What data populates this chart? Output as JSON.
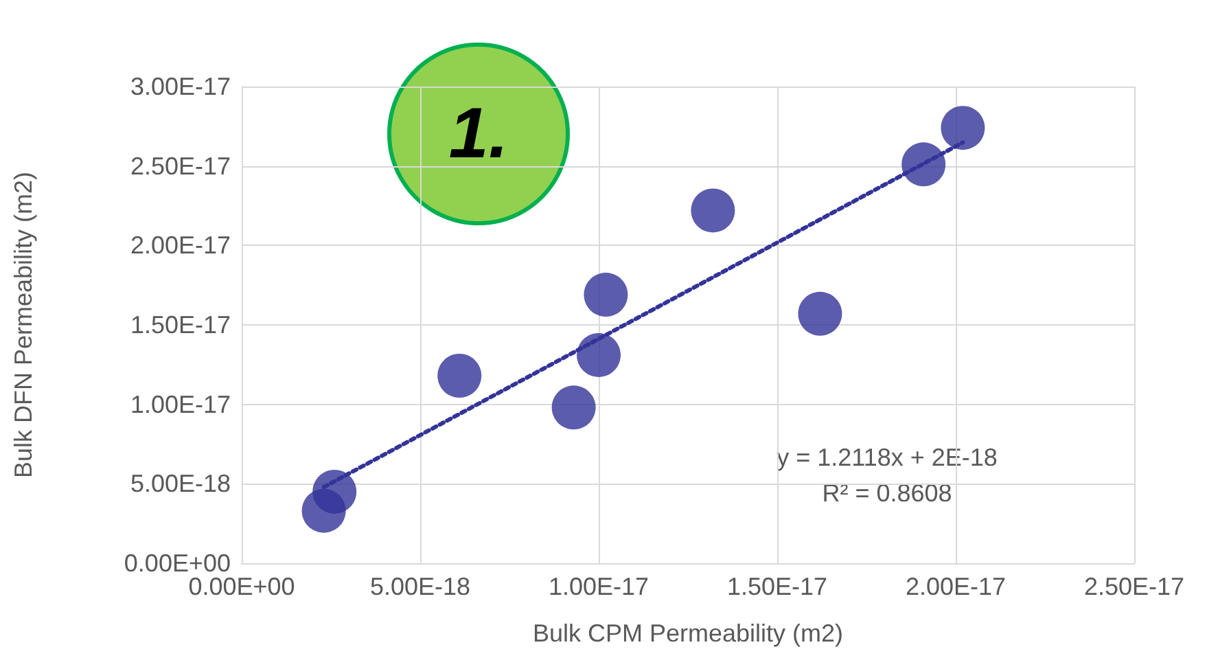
{
  "chart_data": {
    "type": "scatter",
    "xlabel": "Bulk CPM Permeability (m2)",
    "ylabel": "Bulk DFN Permeability (m2)",
    "annotations": [
      "1.",
      "y = 1.2118x + 2E-18",
      "R² = 0.8608"
    ],
    "series": [
      {
        "color": "#333399",
        "marker": "circle",
        "x": [
          2.3e-18,
          2.6e-18,
          6.1e-18,
          9.3e-18,
          1e-17,
          1.02e-17,
          1.32e-17,
          1.62e-17,
          1.91e-17,
          2.02e-17
        ],
        "values": [
          3.3e-18,
          4.5e-18,
          1.18e-17,
          9.8e-18,
          1.31e-17,
          1.69e-17,
          2.22e-17,
          1.57e-17,
          2.51e-17,
          2.74e-17
        ]
      },
      {
        "type": "line",
        "color": "#333399",
        "marker": "none",
        "line_style": "dotted",
        "x": [
          2.3e-18,
          2.02e-17
        ],
        "values": [
          4.79e-18,
          2.648e-17
        ]
      }
    ],
    "xlim": [
      0,
      2.5e-17
    ],
    "xticks": [
      {
        "value": 0,
        "label": "0.00E+00"
      },
      {
        "value": 5e-18,
        "label": "5.00E-18"
      },
      {
        "value": 1e-17,
        "label": "1.00E-17"
      },
      {
        "value": 1.5e-17,
        "label": "1.50E-17"
      },
      {
        "value": 2e-17,
        "label": "2.00E-17"
      },
      {
        "value": 2.5e-17,
        "label": "2.50E-17"
      }
    ],
    "ylim": [
      0,
      3e-17
    ],
    "yticks": [
      {
        "value": 0,
        "label": "0.00E+00"
      },
      {
        "value": 5e-18,
        "label": "5.00E-18"
      },
      {
        "value": 1e-17,
        "label": "1.00E-17"
      },
      {
        "value": 1.5e-17,
        "label": "1.50E-17"
      },
      {
        "value": 2e-17,
        "label": "2.00E-17"
      },
      {
        "value": 2.5e-17,
        "label": "2.50E-17"
      },
      {
        "value": 3e-17,
        "label": "3.00E-17"
      }
    ],
    "grid": true
  }
}
